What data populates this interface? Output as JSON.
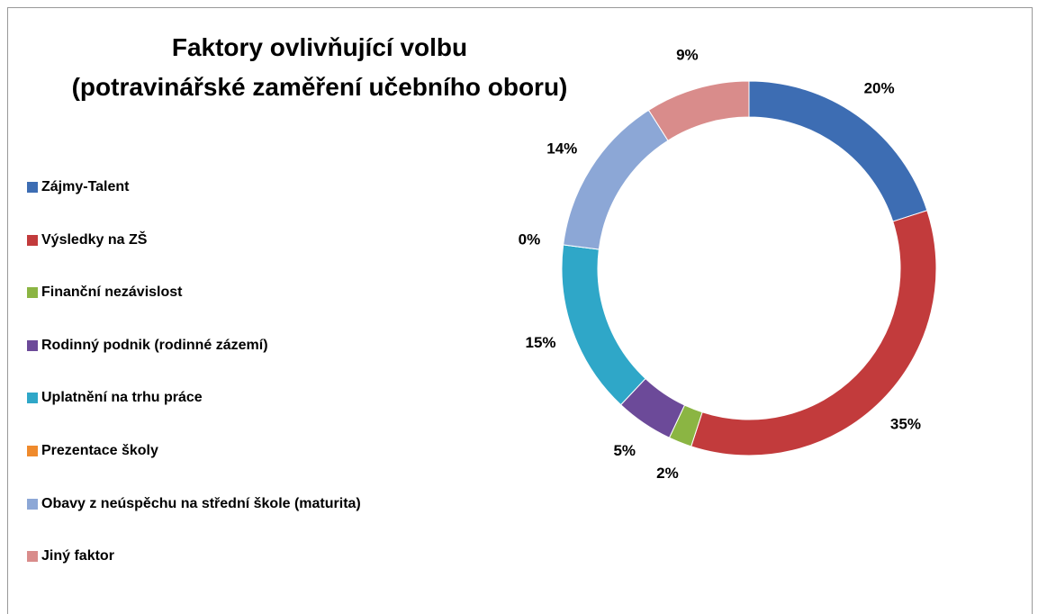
{
  "chart_data": {
    "type": "donut",
    "title": [
      "Faktory ovlivňující volbu",
      "(potravinářské zaměření učebního oboru)"
    ],
    "categories": [
      "Zájmy-Talent",
      "Výsledky na ZŠ",
      "Finanční  nezávislost",
      "Rodinný podnik (rodinné zázemí)",
      "Uplatnění na trhu práce",
      "Prezentace školy",
      "Obavy z neúspěchu na střední škole (maturita)",
      "Jiný faktor"
    ],
    "values": [
      20,
      35,
      2,
      5,
      15,
      0,
      14,
      9
    ],
    "value_labels": [
      "20%",
      "35%",
      "2%",
      "5%",
      "15%",
      "0%",
      "14%",
      "9%"
    ],
    "colors": [
      "#3d6db3",
      "#c23b3c",
      "#8bb543",
      "#6c4a99",
      "#2fa7c8",
      "#ef8a2c",
      "#8ca7d6",
      "#d98c8b"
    ],
    "legend": "left"
  }
}
